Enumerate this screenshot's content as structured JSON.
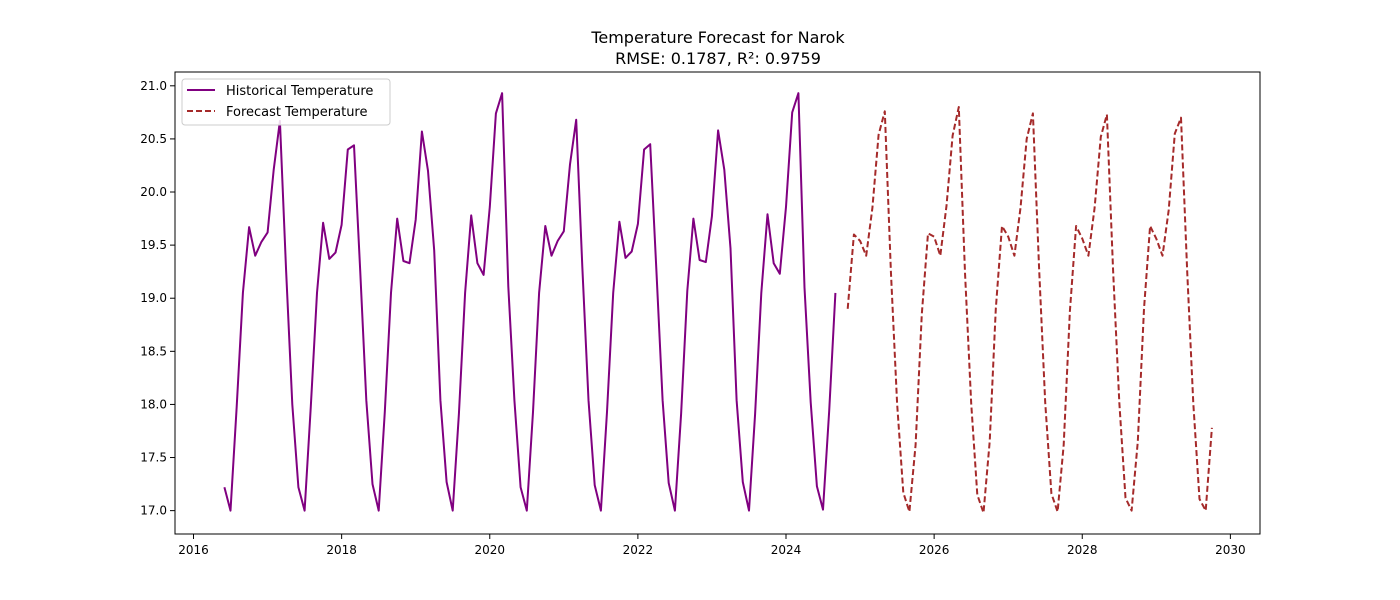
{
  "chart_data": {
    "type": "line",
    "title": "Temperature Forecast for Narok",
    "subtitle_prefix": "RMSE: ",
    "rmse": "0.1787",
    "r2_label": ", R²: ",
    "r2": "0.9759",
    "xlabel": "",
    "ylabel": "",
    "xlim": [
      2015.75,
      2030.4
    ],
    "ylim": [
      16.78,
      21.13
    ],
    "x_ticks": [
      "2016",
      "2018",
      "2020",
      "2022",
      "2024",
      "2026",
      "2028",
      "2030"
    ],
    "y_ticks": [
      "17.0",
      "17.5",
      "18.0",
      "18.5",
      "19.0",
      "19.5",
      "20.0",
      "20.5",
      "21.0"
    ],
    "grid": false,
    "legend_placement": "top-left",
    "series": [
      {
        "name": "Historical Temperature",
        "color": "#800080",
        "style": "solid",
        "x_start": "2016-06",
        "step": "monthly",
        "values": [
          17.22,
          17.0,
          17.98,
          19.05,
          19.67,
          19.4,
          19.53,
          19.62,
          20.21,
          20.67,
          19.26,
          18.0,
          17.22,
          17.0,
          17.98,
          19.05,
          19.71,
          19.37,
          19.43,
          19.69,
          20.4,
          20.44,
          19.26,
          18.04,
          17.25,
          17.0,
          17.93,
          19.05,
          19.75,
          19.35,
          19.33,
          19.74,
          20.57,
          20.2,
          19.45,
          18.04,
          17.27,
          17.0,
          17.91,
          19.05,
          19.78,
          19.33,
          19.22,
          19.86,
          20.74,
          20.93,
          19.11,
          18.04,
          17.22,
          17.0,
          17.93,
          19.05,
          19.68,
          19.4,
          19.54,
          19.63,
          20.26,
          20.68,
          19.3,
          18.04,
          17.24,
          17.0,
          17.93,
          19.05,
          19.72,
          19.38,
          19.44,
          19.7,
          20.4,
          20.45,
          19.26,
          18.04,
          17.26,
          17.0,
          17.91,
          19.07,
          19.75,
          19.36,
          19.34,
          19.77,
          20.58,
          20.21,
          19.47,
          18.04,
          17.27,
          17.0,
          17.91,
          19.05,
          19.79,
          19.33,
          19.23,
          19.86,
          20.75,
          20.93,
          19.1,
          18.02,
          17.23,
          17.01,
          17.94,
          19.05
        ]
      },
      {
        "name": "Forecast Temperature",
        "color": "#a52a2a",
        "style": "dashed",
        "x_start": "2024-11",
        "step": "monthly",
        "values": [
          18.9,
          19.6,
          19.54,
          19.4,
          19.85,
          20.54,
          20.76,
          19.25,
          18.01,
          17.17,
          16.99,
          17.62,
          18.85,
          19.61,
          19.58,
          19.4,
          19.87,
          20.53,
          20.8,
          19.24,
          18.01,
          17.15,
          16.98,
          17.65,
          18.9,
          19.68,
          19.58,
          19.4,
          19.85,
          20.5,
          20.74,
          19.28,
          18.02,
          17.16,
          16.99,
          17.62,
          18.88,
          19.68,
          19.56,
          19.4,
          19.85,
          20.52,
          20.73,
          19.26,
          18.02,
          17.12,
          17.0,
          17.65,
          18.9,
          19.68,
          19.56,
          19.4,
          19.83,
          20.55,
          20.7,
          19.25,
          18.01,
          17.11,
          17.0,
          17.78
        ]
      }
    ]
  }
}
